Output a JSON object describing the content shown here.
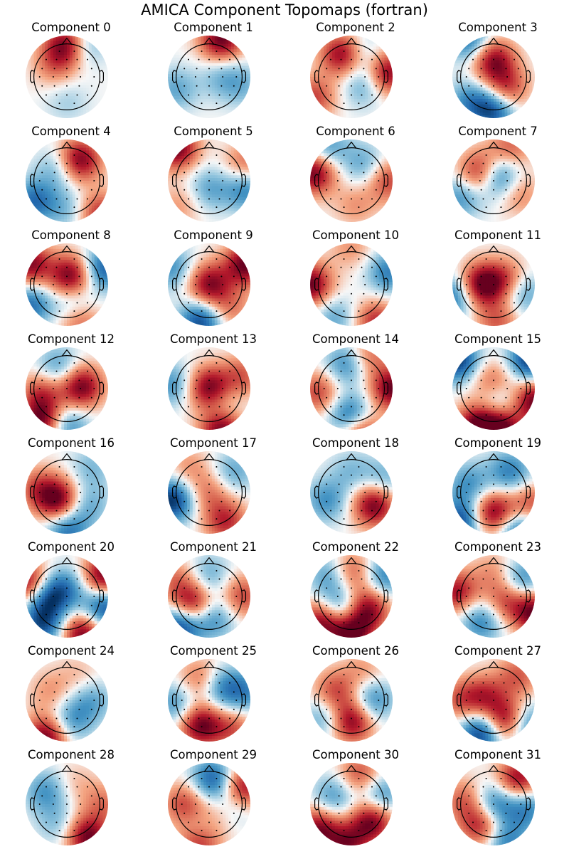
{
  "title": "AMICA Component Topomaps (fortran)",
  "colors": {
    "negative": "#053061",
    "neutral": "#f7f7f7",
    "positive": "#67001f",
    "outline": "#000000"
  },
  "chart_data": {
    "type": "heatmap",
    "subtype": "scalp-topomap-grid",
    "colormap": "RdBu_r",
    "value_range": [
      -1,
      1
    ],
    "layout": {
      "rows": 8,
      "cols": 4
    },
    "components": [
      {
        "title": "Component 0",
        "sources": [
          [
            0.0,
            0.8,
            1.0
          ],
          [
            0.4,
            0.8,
            -0.5
          ],
          [
            -0.3,
            0.3,
            0.4
          ],
          [
            0.0,
            -0.6,
            -0.2
          ]
        ]
      },
      {
        "title": "Component 1",
        "sources": [
          [
            0.3,
            0.9,
            1.0
          ],
          [
            -0.8,
            -0.3,
            -0.4
          ],
          [
            0.8,
            -0.2,
            -0.3
          ],
          [
            0.3,
            0.0,
            -0.3
          ]
        ]
      },
      {
        "title": "Component 2",
        "sources": [
          [
            -0.2,
            0.55,
            1.0
          ],
          [
            0.9,
            0.1,
            0.9
          ],
          [
            -0.9,
            -0.5,
            0.6
          ],
          [
            0.3,
            -0.2,
            -0.4
          ],
          [
            0.2,
            0.6,
            -0.4
          ]
        ]
      },
      {
        "title": "Component 3",
        "sources": [
          [
            0.0,
            0.4,
            0.9
          ],
          [
            0.3,
            -0.3,
            0.7
          ],
          [
            -0.6,
            0.9,
            -0.7
          ],
          [
            0.0,
            -0.8,
            -0.9
          ],
          [
            -0.6,
            -0.6,
            -0.5
          ]
        ]
      },
      {
        "title": "Component 4",
        "sources": [
          [
            0.3,
            0.5,
            1.0
          ],
          [
            0.8,
            -0.8,
            0.7
          ],
          [
            -0.2,
            0.3,
            -0.4
          ],
          [
            -0.8,
            -0.5,
            -0.7
          ],
          [
            0.0,
            -0.7,
            -0.3
          ]
        ]
      },
      {
        "title": "Component 5",
        "sources": [
          [
            -0.8,
            0.8,
            1.0
          ],
          [
            0.9,
            0.4,
            0.5
          ],
          [
            0.9,
            -0.2,
            -0.6
          ],
          [
            0.0,
            -0.2,
            -0.4
          ],
          [
            -0.7,
            -0.6,
            0.3
          ]
        ]
      },
      {
        "title": "Component 6",
        "sources": [
          [
            -0.9,
            0.2,
            1.0
          ],
          [
            0.9,
            0.0,
            0.6
          ],
          [
            -0.6,
            0.8,
            -0.5
          ],
          [
            0.3,
            0.4,
            -0.4
          ],
          [
            0.1,
            -0.6,
            0.3
          ]
        ]
      },
      {
        "title": "Component 7",
        "sources": [
          [
            -0.3,
            0.2,
            0.9
          ],
          [
            0.1,
            0.1,
            -0.9
          ],
          [
            0.4,
            0.8,
            0.5
          ],
          [
            -0.8,
            -0.4,
            -0.5
          ],
          [
            0.6,
            -0.3,
            0.4
          ]
        ]
      },
      {
        "title": "Component 8",
        "sources": [
          [
            0.1,
            0.2,
            1.0
          ],
          [
            -0.9,
            0.5,
            0.9
          ],
          [
            0.9,
            0.4,
            -0.8
          ],
          [
            -0.9,
            -0.5,
            -0.7
          ],
          [
            0.3,
            -0.8,
            0.7
          ],
          [
            0.2,
            -0.5,
            -0.6
          ]
        ]
      },
      {
        "title": "Component 9",
        "sources": [
          [
            0.0,
            0.0,
            0.9
          ],
          [
            0.9,
            0.5,
            1.0
          ],
          [
            -0.2,
            -0.9,
            -0.9
          ],
          [
            -0.9,
            0.4,
            -0.5
          ],
          [
            0.5,
            -0.6,
            0.4
          ]
        ]
      },
      {
        "title": "Component 10",
        "sources": [
          [
            -1.0,
            0.0,
            1.0
          ],
          [
            0.9,
            0.3,
            -0.6
          ],
          [
            0.6,
            -0.9,
            0.7
          ],
          [
            -0.4,
            -0.8,
            -0.4
          ],
          [
            0.0,
            0.9,
            0.3
          ]
        ]
      },
      {
        "title": "Component 11",
        "sources": [
          [
            -0.3,
            0.0,
            1.0
          ],
          [
            0.3,
            0.1,
            0.6
          ],
          [
            -1.0,
            -0.3,
            -0.7
          ],
          [
            0.7,
            -0.2,
            -0.5
          ],
          [
            0.1,
            -0.9,
            0.5
          ]
        ]
      },
      {
        "title": "Component 12",
        "sources": [
          [
            0.35,
            0.05,
            1.0
          ],
          [
            -0.6,
            -0.1,
            0.6
          ],
          [
            -0.6,
            -0.8,
            1.0
          ],
          [
            0.0,
            -0.9,
            -0.6
          ],
          [
            -0.2,
            0.5,
            -0.5
          ]
        ]
      },
      {
        "title": "Component 13",
        "sources": [
          [
            0.0,
            0.0,
            1.0
          ],
          [
            0.3,
            -1.0,
            1.0
          ],
          [
            -0.9,
            0.1,
            -0.5
          ],
          [
            0.8,
            0.3,
            0.5
          ],
          [
            0.3,
            -0.4,
            -0.3
          ]
        ]
      },
      {
        "title": "Component 14",
        "sources": [
          [
            1.0,
            0.0,
            1.0
          ],
          [
            0.0,
            -0.7,
            -1.0
          ],
          [
            0.2,
            -1.0,
            1.0
          ],
          [
            -0.1,
            0.6,
            -0.6
          ],
          [
            -0.8,
            -0.1,
            0.6
          ],
          [
            0.4,
            0.8,
            0.5
          ]
        ]
      },
      {
        "title": "Component 15",
        "sources": [
          [
            -0.9,
            0.7,
            -1.0
          ],
          [
            0.9,
            0.7,
            -1.0
          ],
          [
            -0.4,
            -0.9,
            1.0
          ],
          [
            0.2,
            -1.0,
            1.0
          ],
          [
            1.0,
            -0.3,
            1.0
          ],
          [
            0.0,
            0.1,
            0.7
          ],
          [
            0.1,
            -0.2,
            -0.6
          ]
        ]
      },
      {
        "title": "Component 16",
        "sources": [
          [
            -0.2,
            -0.2,
            1.0
          ],
          [
            -0.7,
            0.1,
            0.5
          ],
          [
            0.0,
            -0.9,
            -0.7
          ],
          [
            0.5,
            -0.3,
            -0.4
          ],
          [
            0.6,
            0.6,
            -0.3
          ]
        ]
      },
      {
        "title": "Component 17",
        "sources": [
          [
            -0.9,
            -0.2,
            -1.0
          ],
          [
            0.4,
            -0.7,
            0.7
          ],
          [
            0.0,
            0.0,
            0.4
          ],
          [
            0.6,
            0.5,
            -0.4
          ],
          [
            -0.5,
            0.6,
            0.3
          ]
        ]
      },
      {
        "title": "Component 18",
        "sources": [
          [
            0.55,
            -0.3,
            1.0
          ],
          [
            -0.6,
            -0.2,
            -0.5
          ],
          [
            0.0,
            0.5,
            -0.3
          ],
          [
            0.8,
            0.3,
            -0.4
          ]
        ]
      },
      {
        "title": "Component 19",
        "sources": [
          [
            0.0,
            -0.5,
            1.0
          ],
          [
            -0.8,
            -0.7,
            -0.9
          ],
          [
            0.6,
            -0.9,
            -0.8
          ],
          [
            0.4,
            0.5,
            -0.6
          ],
          [
            -0.6,
            0.2,
            -0.5
          ],
          [
            0.9,
            -0.3,
            0.6
          ]
        ]
      },
      {
        "title": "Component 20",
        "sources": [
          [
            -0.9,
            0.3,
            1.0
          ],
          [
            0.9,
            0.5,
            1.0
          ],
          [
            -0.5,
            0.0,
            -0.9
          ],
          [
            0.4,
            -0.9,
            1.0
          ],
          [
            0.9,
            -0.3,
            -0.9
          ],
          [
            -0.6,
            -0.7,
            -0.8
          ],
          [
            0.0,
            0.2,
            -0.5
          ]
        ]
      },
      {
        "title": "Component 21",
        "sources": [
          [
            -0.4,
            -0.2,
            1.0
          ],
          [
            -0.7,
            -0.7,
            -1.0
          ],
          [
            0.8,
            0.0,
            0.6
          ],
          [
            0.1,
            -0.5,
            -0.6
          ],
          [
            0.0,
            0.5,
            -0.4
          ],
          [
            -0.8,
            0.4,
            0.4
          ]
        ]
      },
      {
        "title": "Component 22",
        "sources": [
          [
            -0.7,
            -0.6,
            1.0
          ],
          [
            0.4,
            -0.3,
            0.9
          ],
          [
            0.0,
            -0.9,
            1.0
          ],
          [
            -0.3,
            -0.3,
            -0.7
          ],
          [
            0.0,
            0.6,
            0.6
          ],
          [
            -0.5,
            0.5,
            -0.5
          ],
          [
            0.8,
            0.5,
            -0.6
          ]
        ]
      },
      {
        "title": "Component 23",
        "sources": [
          [
            1.0,
            -0.4,
            1.0
          ],
          [
            -0.9,
            0.1,
            0.8
          ],
          [
            0.3,
            -0.1,
            0.6
          ],
          [
            0.7,
            0.4,
            -0.6
          ],
          [
            -0.3,
            -0.6,
            -0.6
          ],
          [
            0.0,
            0.6,
            0.3
          ]
        ]
      },
      {
        "title": "Component 24",
        "sources": [
          [
            -0.5,
            -0.9,
            1.0
          ],
          [
            0.6,
            0.0,
            -0.4
          ],
          [
            -0.4,
            0.2,
            0.3
          ],
          [
            0.1,
            -0.5,
            -0.5
          ],
          [
            0.3,
            0.6,
            0.2
          ]
        ]
      },
      {
        "title": "Component 25",
        "sources": [
          [
            -0.2,
            -0.6,
            1.0
          ],
          [
            -0.8,
            -0.1,
            -0.5
          ],
          [
            0.3,
            0.3,
            -0.6
          ],
          [
            -0.2,
            0.5,
            0.5
          ],
          [
            0.6,
            -0.7,
            0.5
          ],
          [
            0.9,
            0.2,
            -0.5
          ]
        ]
      },
      {
        "title": "Component 26",
        "sources": [
          [
            0.0,
            -0.5,
            1.0
          ],
          [
            -0.4,
            0.2,
            0.6
          ],
          [
            0.5,
            0.0,
            -0.6
          ],
          [
            -0.6,
            -0.4,
            -0.5
          ],
          [
            0.3,
            0.7,
            0.3
          ]
        ]
      },
      {
        "title": "Component 27",
        "sources": [
          [
            0.3,
            -0.5,
            1.0
          ],
          [
            -0.3,
            -0.8,
            -1.0
          ],
          [
            -0.2,
            0.1,
            0.6
          ],
          [
            0.8,
            -0.6,
            -0.7
          ],
          [
            -0.8,
            0.0,
            0.5
          ],
          [
            0.6,
            0.6,
            0.5
          ]
        ]
      },
      {
        "title": "Component 28",
        "sources": [
          [
            0.5,
            -0.8,
            1.0
          ],
          [
            -0.5,
            0.3,
            -0.5
          ],
          [
            0.9,
            0.0,
            0.4
          ],
          [
            -0.2,
            -0.5,
            -0.3
          ],
          [
            0.2,
            0.5,
            0.2
          ]
        ]
      },
      {
        "title": "Component 29",
        "sources": [
          [
            0.8,
            0.4,
            0.9
          ],
          [
            0.1,
            0.6,
            -0.8
          ],
          [
            -0.6,
            0.0,
            0.6
          ],
          [
            0.2,
            -0.3,
            0.6
          ],
          [
            -0.2,
            -0.9,
            0.9
          ],
          [
            -0.1,
            -0.6,
            -0.6
          ],
          [
            0.5,
            -0.1,
            -0.5
          ]
        ]
      },
      {
        "title": "Component 30",
        "sources": [
          [
            0.5,
            -0.4,
            1.0
          ],
          [
            -0.8,
            -0.6,
            0.9
          ],
          [
            -0.1,
            -1.0,
            0.8
          ],
          [
            0.2,
            0.7,
            0.6
          ],
          [
            0.7,
            0.2,
            -0.6
          ],
          [
            -0.4,
            0.2,
            -0.5
          ]
        ]
      },
      {
        "title": "Component 31",
        "sources": [
          [
            0.6,
            0.6,
            0.9
          ],
          [
            -0.3,
            -0.5,
            0.8
          ],
          [
            0.0,
            0.0,
            -0.7
          ],
          [
            0.8,
            -0.1,
            -0.6
          ],
          [
            -0.7,
            0.1,
            0.5
          ],
          [
            0.3,
            -0.9,
            -0.6
          ]
        ]
      }
    ]
  }
}
